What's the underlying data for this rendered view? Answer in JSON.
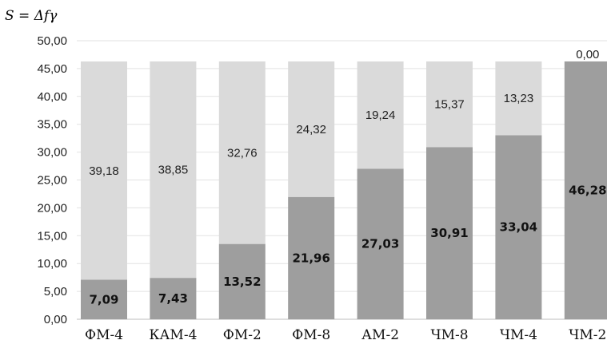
{
  "chart_data": {
    "type": "bar",
    "stacked": true,
    "title": "",
    "ylabel": "S = Δfγ",
    "xlabel": "",
    "ylim": [
      0,
      50
    ],
    "ytick_step": 5,
    "ytick_labels": [
      "0,00",
      "5,00",
      "10,00",
      "15,00",
      "20,00",
      "25,00",
      "30,00",
      "35,00",
      "40,00",
      "45,00",
      "50,00"
    ],
    "grid": "horizontal",
    "legend": "none",
    "categories": [
      "ФМ-4",
      "КАМ-4",
      "ФМ-2",
      "ФМ-8",
      "АМ-2",
      "ЧМ-8",
      "ЧМ-4",
      "ЧМ-2"
    ],
    "series": [
      {
        "values": [
          7.09,
          7.43,
          13.52,
          21.96,
          27.03,
          30.91,
          33.04,
          46.28
        ],
        "labels": [
          "7,09",
          "7,43",
          "13,52",
          "21,96",
          "27,03",
          "30,91",
          "33,04",
          "46,28"
        ],
        "color": "#9e9e9e"
      },
      {
        "values": [
          39.18,
          38.85,
          32.76,
          24.32,
          19.24,
          15.37,
          13.23,
          0.0
        ],
        "labels": [
          "39,18",
          "38,85",
          "32,76",
          "24,32",
          "19,24",
          "15,37",
          "13,23",
          "0,00"
        ],
        "color": "#dadada"
      }
    ]
  }
}
